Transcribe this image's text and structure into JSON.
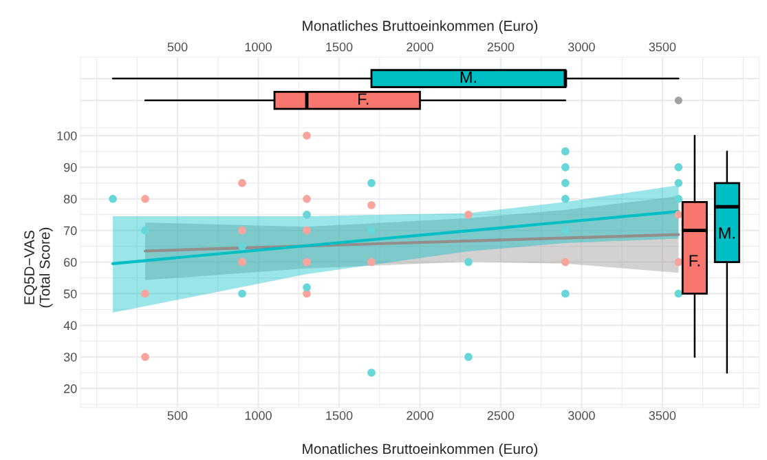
{
  "chart_data": [
    {
      "type": "box",
      "orientation": "horizontal",
      "xlabel": "Monatliches Bruttoeinkommen (Euro)",
      "categories": [
        null,
        null
      ],
      "colors": [
        "#00bfc4",
        "#f8766d"
      ],
      "annotations": [
        "M.",
        "F."
      ],
      "boxes": [
        {
          "low": 100,
          "q1": 1700,
          "median": 2900,
          "q3": 2900,
          "high": 3600
        },
        {
          "low": 300,
          "q1": 1100,
          "median": 1300,
          "q3": 2000,
          "high": 2900,
          "outliers": [
            3600
          ]
        }
      ],
      "xlim": [
        -100,
        4100
      ],
      "xticks": [
        500,
        1000,
        1500,
        2000,
        2500,
        3000,
        3500
      ],
      "tick_labels": "x",
      "grid": true
    },
    {
      "type": "scatter",
      "xlabel": "Monatliches Bruttoeinkommen (Euro)",
      "ylabel": "EQ5D−VAS\n(Total Score)",
      "xlim": [
        -100,
        4100
      ],
      "xticks": [
        500,
        1000,
        1500,
        2000,
        2500,
        3000,
        3500
      ],
      "ylim": [
        14,
        102.5
      ],
      "yticks": [
        20,
        30,
        40,
        50,
        60,
        70,
        80,
        90,
        100
      ],
      "grid": true,
      "series": [
        {
          "type": "line",
          "color": "#928e8c",
          "x": [
            300,
            1300,
            2300,
            2900,
            3600
          ],
          "values": [
            63.5,
            65.1,
            66.7,
            67.6,
            68.7
          ],
          "lower": [
            54.3,
            58,
            60.1,
            59.5,
            56.6
          ],
          "upper": [
            72.5,
            71.2,
            73.9,
            76.5,
            80.8
          ]
        },
        {
          "type": "line",
          "color": "#00bfc4",
          "x": [
            100,
            1300,
            2300,
            2900,
            3600
          ],
          "values": [
            59.5,
            65.2,
            69.9,
            72.7,
            76
          ],
          "lower": [
            44,
            56.2,
            63.4,
            66,
            67.4
          ],
          "upper": [
            74.5,
            74.5,
            75.5,
            79,
            84.3
          ]
        },
        {
          "type": "scatter",
          "color": "#f9a49d",
          "x": [
            300,
            300,
            300,
            900,
            900,
            900,
            1300,
            1300,
            1300,
            1300,
            1300,
            1700,
            1700,
            2300,
            2900,
            3600,
            3600
          ],
          "values": [
            80,
            50,
            30,
            85,
            70,
            60,
            100,
            80,
            70,
            60,
            50,
            78,
            60,
            75,
            60,
            75,
            60
          ]
        },
        {
          "type": "scatter",
          "color": "#66d6d9",
          "x": [
            100,
            300,
            900,
            900,
            1300,
            1300,
            1700,
            1700,
            1700,
            2300,
            2300,
            2900,
            2900,
            2900,
            2900,
            2900,
            2900,
            3600,
            3600,
            3600,
            3600
          ],
          "values": [
            80,
            70,
            65,
            50,
            75,
            52,
            85,
            70,
            25,
            60,
            30,
            95,
            90,
            85,
            80,
            70,
            50,
            90,
            85,
            80,
            50
          ]
        },
        {
          "type": "box",
          "name": "F.",
          "color": "#f8766d",
          "x": [
            3700
          ],
          "boxes": [
            {
              "low": 30,
              "q1": 50,
              "median": 70,
              "q3": 79,
              "high": 100
            }
          ]
        },
        {
          "type": "box",
          "name": "M.",
          "color": "#00bfc4",
          "x": [
            3900
          ],
          "boxes": [
            {
              "low": 25,
              "q1": 60,
              "median": 77.5,
              "q3": 85,
              "high": 95
            }
          ]
        }
      ]
    }
  ]
}
